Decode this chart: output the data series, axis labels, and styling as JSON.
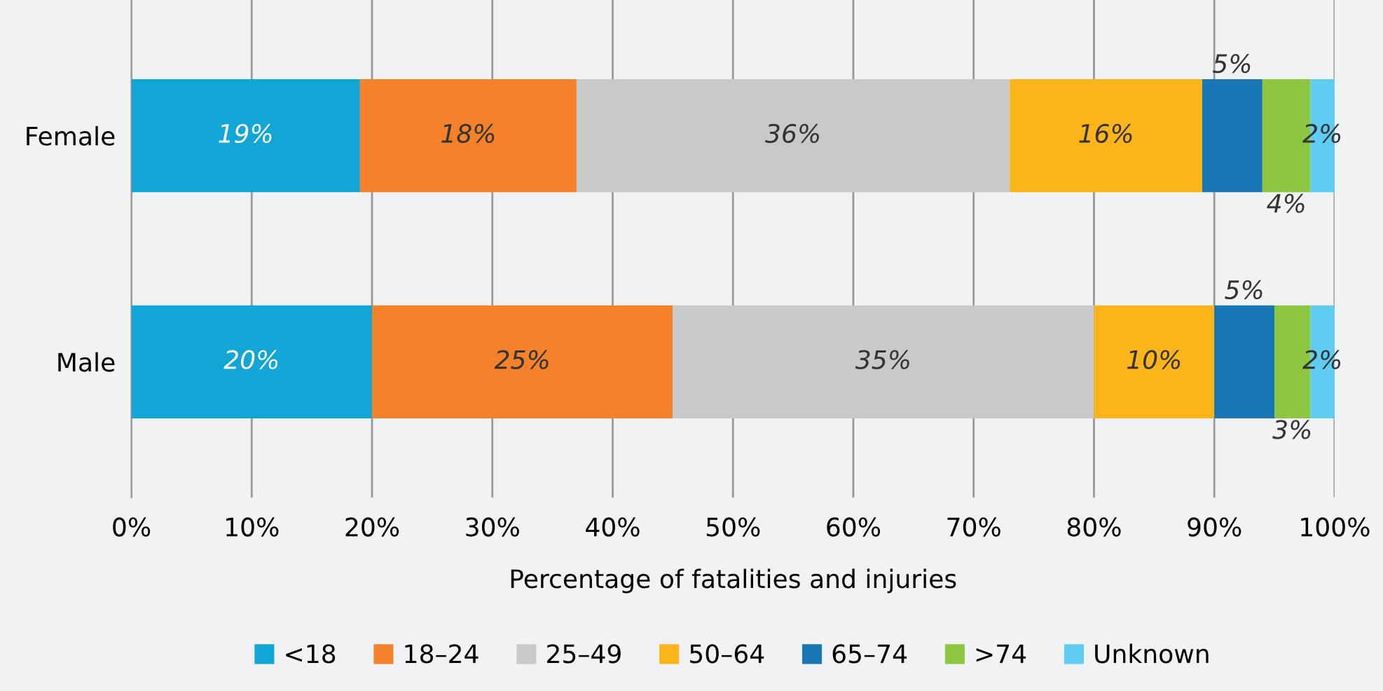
{
  "chart_data": {
    "type": "bar",
    "orientation": "horizontal",
    "stacked": true,
    "categories": [
      "Female",
      "Male"
    ],
    "xlabel": "Percentage of fatalities and injuries",
    "series": [
      {
        "name": "<18",
        "color": "#12a6d7",
        "values": [
          19,
          20
        ],
        "value_labels": [
          "19%",
          "20%"
        ]
      },
      {
        "name": "18–24",
        "color": "#f5822a",
        "values": [
          18,
          25
        ],
        "value_labels": [
          "18%",
          "25%"
        ]
      },
      {
        "name": "25–49",
        "color": "#c8c9ca",
        "values": [
          36,
          35
        ],
        "value_labels": [
          "36%",
          "35%"
        ]
      },
      {
        "name": "50–64",
        "color": "#fbb41a",
        "values": [
          16,
          10
        ],
        "value_labels": [
          "16%",
          "10%"
        ]
      },
      {
        "name": "65–74",
        "color": "#1a77b5",
        "values": [
          5,
          5
        ],
        "value_labels": [
          "5%",
          "5%"
        ]
      },
      {
        "name": ">74",
        "color": "#8dc63f",
        "values": [
          4,
          3
        ],
        "value_labels": [
          "4%",
          "3%"
        ]
      },
      {
        "name": "Unknown",
        "color": "#5fcdf2",
        "values": [
          2,
          2
        ],
        "value_labels": [
          "2%",
          "2%"
        ]
      }
    ],
    "xlim": [
      0,
      100
    ],
    "xticks": [
      {
        "value": 0,
        "label": "0%"
      },
      {
        "value": 10,
        "label": "10%"
      },
      {
        "value": 20,
        "label": "20%"
      },
      {
        "value": 30,
        "label": "30%"
      },
      {
        "value": 40,
        "label": "40%"
      },
      {
        "value": 50,
        "label": "50%"
      },
      {
        "value": 60,
        "label": "60%"
      },
      {
        "value": 70,
        "label": "70%"
      },
      {
        "value": 80,
        "label": "80%"
      },
      {
        "value": 90,
        "label": "90%"
      },
      {
        "value": 100,
        "label": "100%"
      }
    ],
    "grid": "x",
    "legend": "bottom"
  }
}
